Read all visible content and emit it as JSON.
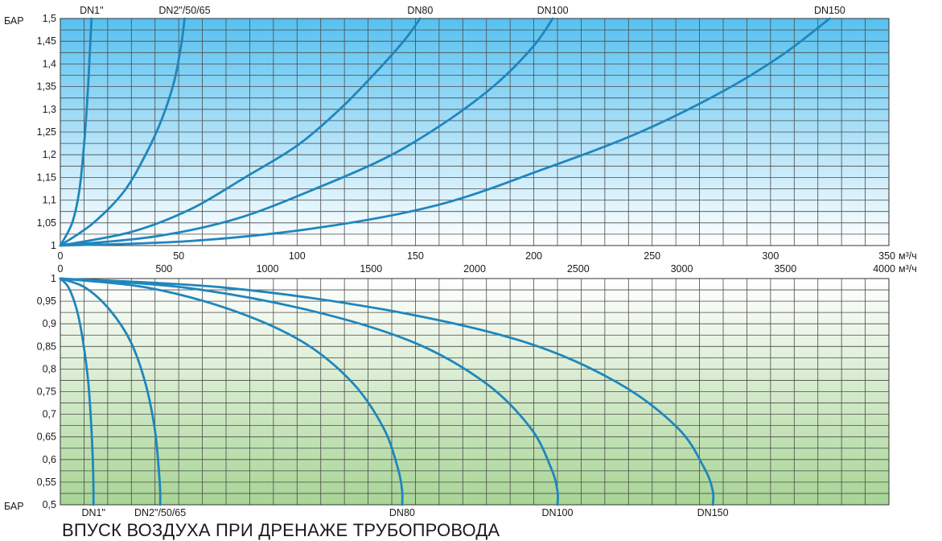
{
  "chart_data": [
    {
      "type": "line",
      "ylabel": "БАР",
      "xlabel": "м³/ч",
      "xlim": [
        0,
        350
      ],
      "ylim": [
        1,
        1.5
      ],
      "x_ticks": [
        0,
        50,
        100,
        150,
        200,
        250,
        300,
        350
      ],
      "y_ticks": [
        "1",
        "1,05",
        "1,1",
        "1,15",
        "1,2",
        "1,25",
        "1,3",
        "1,35",
        "1,4",
        "1,45",
        "1,5"
      ],
      "grid": true,
      "colors": {
        "background_top": "#57c1f0",
        "background_bottom": "#ffffff",
        "line": "#1f86bd",
        "grid": "#4a4a4a"
      },
      "series": [
        {
          "name": "DN1\"",
          "x": [
            0,
            5,
            8,
            10,
            11.5,
            12.5,
            13.2
          ],
          "y": [
            1,
            1.05,
            1.12,
            1.22,
            1.33,
            1.43,
            1.5
          ]
        },
        {
          "name": "DN2\"/50/65",
          "x": [
            0,
            14,
            27,
            36,
            43,
            48,
            51,
            52.5
          ],
          "y": [
            1,
            1.05,
            1.12,
            1.2,
            1.28,
            1.36,
            1.44,
            1.5
          ]
        },
        {
          "name": "DN80",
          "x": [
            0,
            30,
            55,
            78,
            100,
            118,
            133,
            145,
            152
          ],
          "y": [
            1,
            1.03,
            1.08,
            1.15,
            1.22,
            1.3,
            1.38,
            1.45,
            1.5
          ]
        },
        {
          "name": "DN100",
          "x": [
            0,
            40,
            75,
            110,
            140,
            165,
            185,
            200,
            208
          ],
          "y": [
            1,
            1.02,
            1.06,
            1.13,
            1.2,
            1.28,
            1.36,
            1.44,
            1.5
          ]
        },
        {
          "name": "DN150",
          "x": [
            0,
            55,
            110,
            160,
            205,
            245,
            280,
            305,
            325
          ],
          "y": [
            1,
            1.01,
            1.04,
            1.09,
            1.17,
            1.25,
            1.34,
            1.42,
            1.5
          ]
        }
      ]
    },
    {
      "type": "line",
      "ylabel": "БАР",
      "xlabel": "м³/ч",
      "xlim": [
        0,
        4000
      ],
      "ylim": [
        0.5,
        1
      ],
      "x_ticks": [
        0,
        500,
        1000,
        1500,
        2000,
        2500,
        3000,
        3500,
        4000
      ],
      "y_ticks": [
        "0,5",
        "0,55",
        "0,6",
        "0,65",
        "0,7",
        "0,75",
        "0,8",
        "0,85",
        "0,9",
        "0,95",
        "1"
      ],
      "grid": true,
      "colors": {
        "background_top": "#ffffff",
        "background_bottom": "#a8d596",
        "line": "#1f86bd",
        "grid": "#4a4a4a"
      },
      "series": [
        {
          "name": "DN1\"",
          "x": [
            0,
            40,
            80,
            110,
            135,
            150,
            158,
            160,
            160
          ],
          "y": [
            1,
            0.98,
            0.93,
            0.86,
            0.77,
            0.67,
            0.58,
            0.53,
            0.5
          ]
        },
        {
          "name": "DN2\"/50/65",
          "x": [
            0,
            120,
            240,
            340,
            410,
            455,
            475,
            482,
            482
          ],
          "y": [
            1,
            0.98,
            0.93,
            0.86,
            0.77,
            0.67,
            0.58,
            0.53,
            0.5
          ]
        },
        {
          "name": "DN80",
          "x": [
            0,
            420,
            830,
            1170,
            1410,
            1560,
            1630,
            1650,
            1650
          ],
          "y": [
            1,
            0.98,
            0.93,
            0.86,
            0.77,
            0.67,
            0.58,
            0.53,
            0.5
          ]
        },
        {
          "name": "DN100",
          "x": [
            0,
            600,
            1200,
            1700,
            2050,
            2270,
            2370,
            2400,
            2400
          ],
          "y": [
            1,
            0.98,
            0.93,
            0.86,
            0.77,
            0.67,
            0.58,
            0.53,
            0.5
          ]
        },
        {
          "name": "DN150",
          "x": [
            0,
            790,
            1580,
            2240,
            2690,
            2980,
            3110,
            3150,
            3150
          ],
          "y": [
            1,
            0.98,
            0.93,
            0.86,
            0.77,
            0.67,
            0.58,
            0.53,
            0.5
          ]
        }
      ]
    }
  ],
  "caption": "ВПУСК ВОЗДУХА ПРИ ДРЕНАЖЕ ТРУБОПРОВОДА"
}
